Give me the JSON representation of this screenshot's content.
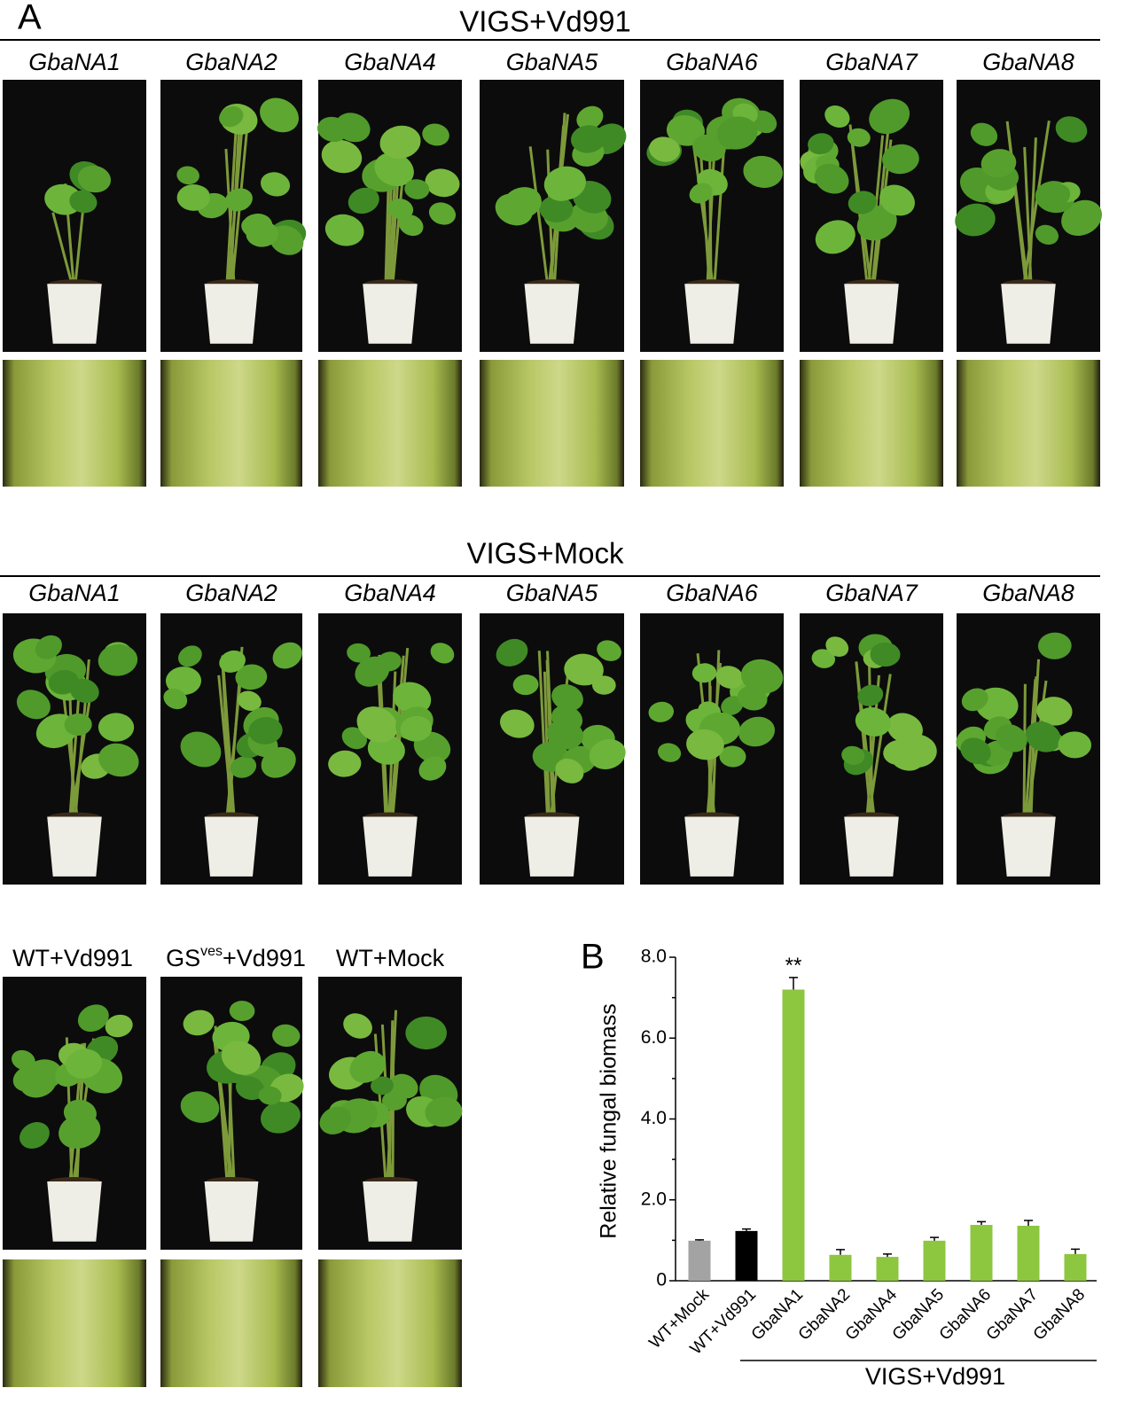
{
  "panel_a": {
    "label": "A",
    "top": {
      "title": "VIGS+Vd991",
      "columns": [
        "GbaNA1",
        "GbaNA2",
        "GbaNA4",
        "GbaNA5",
        "GbaNA6",
        "GbaNA7",
        "GbaNA8"
      ]
    },
    "middle": {
      "title": "VIGS+Mock",
      "columns": [
        "GbaNA1",
        "GbaNA2",
        "GbaNA4",
        "GbaNA5",
        "GbaNA6",
        "GbaNA7",
        "GbaNA8"
      ]
    },
    "bottom": {
      "wt_vd991": "WT+Vd991",
      "gs_vd991": {
        "base": "GS",
        "sup": "ves",
        "rest": "+Vd991"
      },
      "wt_mock": "WT+Mock"
    }
  },
  "chart_data": {
    "type": "bar",
    "label": "B",
    "ylabel": "Relative fungal biomass",
    "categories": [
      "WT+Mock",
      "WT+Vd991",
      "GbaNA1",
      "GbaNA2",
      "GbaNA4",
      "GbaNA5",
      "GbaNA6",
      "GbaNA7",
      "GbaNA8"
    ],
    "values": [
      0.99,
      1.23,
      7.2,
      0.64,
      0.59,
      0.99,
      1.38,
      1.36,
      0.66
    ],
    "errors": [
      0.02,
      0.05,
      0.3,
      0.13,
      0.07,
      0.08,
      0.08,
      0.13,
      0.12
    ],
    "colors": [
      "#a3a3a3",
      "#000000",
      "#8dc63f",
      "#8dc63f",
      "#8dc63f",
      "#8dc63f",
      "#8dc63f",
      "#8dc63f",
      "#8dc63f"
    ],
    "ylim": [
      0,
      8
    ],
    "yticks": [
      0,
      {
        "value": 2,
        "label": "2.0"
      },
      {
        "value": 4,
        "label": "4.0"
      },
      {
        "value": 6,
        "label": "6.0"
      },
      {
        "value": 8,
        "label": "8.0"
      }
    ],
    "yminor_ticks": [
      1,
      3,
      5,
      7
    ],
    "annotations": [
      {
        "text": "**",
        "category": "GbaNA1"
      }
    ],
    "group_label": "VIGS+Vd991"
  }
}
